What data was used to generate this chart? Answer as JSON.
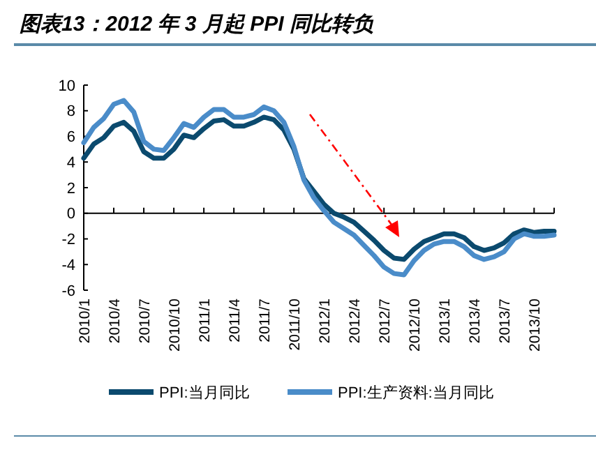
{
  "chart_data": {
    "type": "line",
    "title": "图表13：2012 年 3 月起 PPI 同比转负",
    "categories": [
      "2010/1",
      null,
      null,
      "2010/4",
      null,
      null,
      "2010/7",
      null,
      null,
      "2010/10",
      null,
      null,
      "2011/1",
      null,
      null,
      "2011/4",
      null,
      null,
      "2011/7",
      null,
      null,
      "2011/10",
      null,
      null,
      "2012/1",
      null,
      null,
      "2012/4",
      null,
      null,
      "2012/7",
      null,
      null,
      "2012/10",
      null,
      null,
      "2013/1",
      null,
      null,
      "2013/4",
      null,
      null,
      "2013/7",
      null,
      null,
      "2013/10",
      null,
      null
    ],
    "series": [
      {
        "name": "PPI:当月同比",
        "color": "#0b4a6e",
        "values": [
          4.3,
          5.4,
          5.9,
          6.8,
          7.1,
          6.4,
          4.8,
          4.3,
          4.3,
          5.0,
          6.1,
          5.9,
          6.6,
          7.2,
          7.3,
          6.8,
          6.8,
          7.1,
          7.5,
          7.3,
          6.5,
          5.0,
          2.7,
          1.7,
          0.7,
          0.0,
          -0.3,
          -0.7,
          -1.4,
          -2.1,
          -2.9,
          -3.5,
          -3.6,
          -2.8,
          -2.2,
          -1.9,
          -1.6,
          -1.6,
          -1.9,
          -2.6,
          -2.9,
          -2.7,
          -2.3,
          -1.6,
          -1.3,
          -1.5,
          -1.4,
          -1.4
        ]
      },
      {
        "name": "PPI:生产资料:当月同比",
        "color": "#4a8cc9",
        "values": [
          5.5,
          6.7,
          7.4,
          8.5,
          8.8,
          7.9,
          5.6,
          5.0,
          4.9,
          5.9,
          7.0,
          6.7,
          7.5,
          8.1,
          8.1,
          7.5,
          7.5,
          7.7,
          8.3,
          8.0,
          7.1,
          5.2,
          2.6,
          1.2,
          0.2,
          -0.7,
          -1.2,
          -1.7,
          -2.5,
          -3.3,
          -4.2,
          -4.7,
          -4.8,
          -3.7,
          -2.9,
          -2.4,
          -2.2,
          -2.2,
          -2.6,
          -3.3,
          -3.6,
          -3.4,
          -3.0,
          -2.0,
          -1.6,
          -1.8,
          -1.8,
          -1.7
        ]
      }
    ],
    "ylim": [
      -6,
      10
    ],
    "yticks": [
      -6,
      -4,
      -2,
      0,
      2,
      4,
      6,
      8,
      10
    ],
    "legend": "bottom"
  }
}
